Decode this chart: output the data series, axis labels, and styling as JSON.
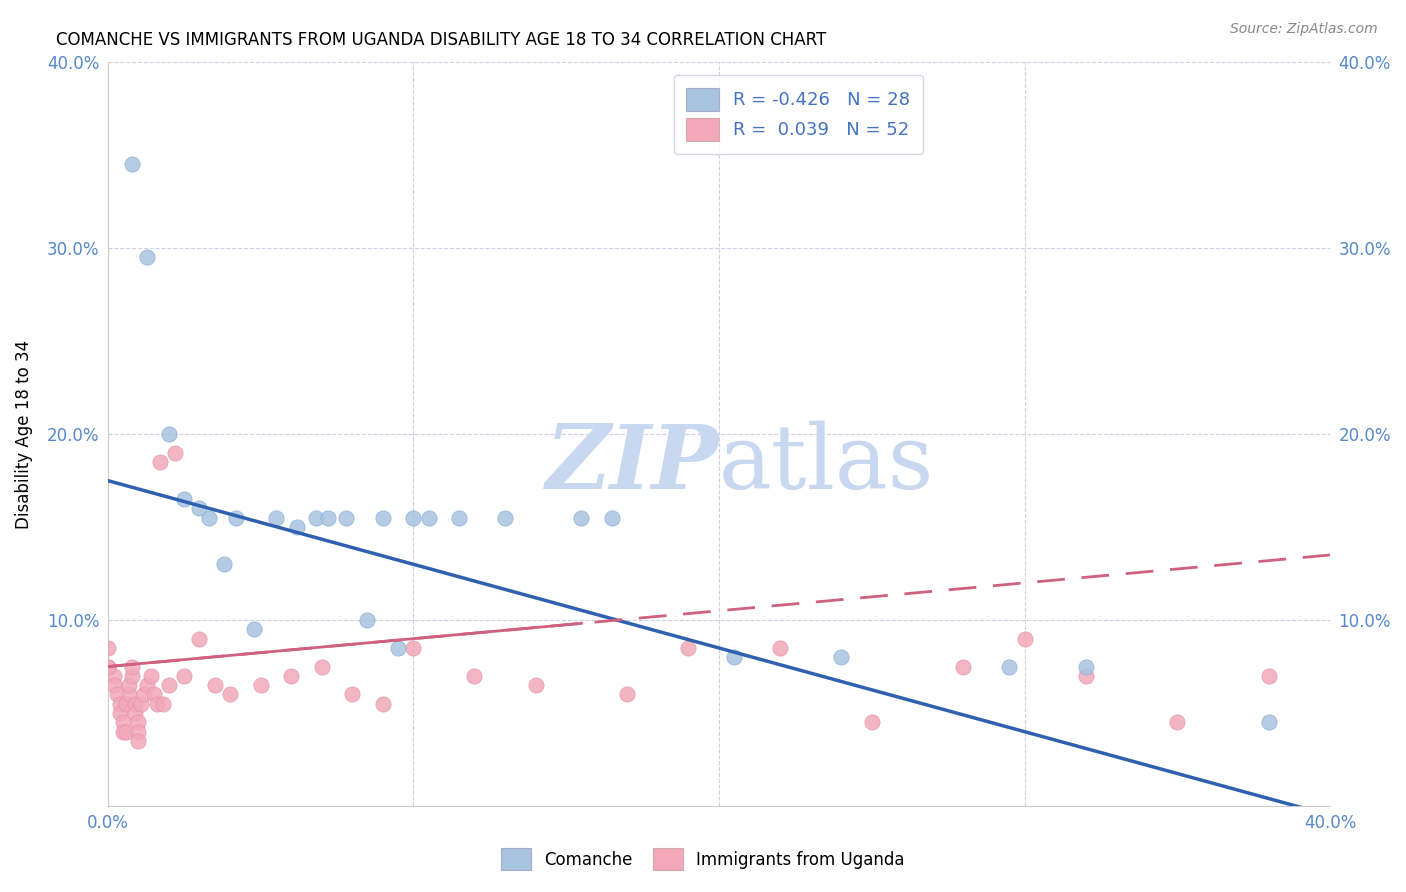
{
  "title": "COMANCHE VS IMMIGRANTS FROM UGANDA DISABILITY AGE 18 TO 34 CORRELATION CHART",
  "source": "Source: ZipAtlas.com",
  "ylabel": "Disability Age 18 to 34",
  "xlim": [
    0.0,
    0.4
  ],
  "ylim": [
    0.0,
    0.4
  ],
  "xtick_vals": [
    0.0,
    0.1,
    0.2,
    0.3,
    0.4
  ],
  "ytick_vals": [
    0.0,
    0.1,
    0.2,
    0.3,
    0.4
  ],
  "legend_label1": "Comanche",
  "legend_label2": "Immigrants from Uganda",
  "comanche_color": "#a8c4e0",
  "uganda_color": "#f2a8b8",
  "comanche_line_color": "#3060b0",
  "uganda_line_color": "#d06080",
  "background_color": "#ffffff",
  "grid_color": "#c8cce0",
  "watermark_color": "#c8d8f0",
  "comanche_x": [
    0.008,
    0.013,
    0.02,
    0.025,
    0.03,
    0.033,
    0.038,
    0.042,
    0.048,
    0.055,
    0.062,
    0.068,
    0.072,
    0.078,
    0.085,
    0.09,
    0.095,
    0.1,
    0.105,
    0.115,
    0.13,
    0.155,
    0.165,
    0.205,
    0.24,
    0.295,
    0.32,
    0.38
  ],
  "comanche_y": [
    0.345,
    0.295,
    0.2,
    0.165,
    0.16,
    0.155,
    0.13,
    0.155,
    0.095,
    0.155,
    0.15,
    0.155,
    0.155,
    0.155,
    0.1,
    0.155,
    0.085,
    0.155,
    0.155,
    0.155,
    0.155,
    0.155,
    0.155,
    0.08,
    0.08,
    0.075,
    0.075,
    0.045
  ],
  "uganda_x": [
    0.0,
    0.0,
    0.002,
    0.002,
    0.003,
    0.004,
    0.004,
    0.005,
    0.005,
    0.006,
    0.006,
    0.007,
    0.007,
    0.008,
    0.008,
    0.009,
    0.009,
    0.01,
    0.01,
    0.01,
    0.011,
    0.012,
    0.013,
    0.014,
    0.015,
    0.016,
    0.017,
    0.018,
    0.02,
    0.022,
    0.025,
    0.03,
    0.035,
    0.04,
    0.05,
    0.06,
    0.07,
    0.08,
    0.09,
    0.1,
    0.12,
    0.14,
    0.17,
    0.19,
    0.22,
    0.25,
    0.28,
    0.3,
    0.32,
    0.35,
    0.38,
    0.0
  ],
  "uganda_y": [
    0.085,
    0.075,
    0.07,
    0.065,
    0.06,
    0.055,
    0.05,
    0.045,
    0.04,
    0.04,
    0.055,
    0.06,
    0.065,
    0.07,
    0.075,
    0.055,
    0.05,
    0.045,
    0.04,
    0.035,
    0.055,
    0.06,
    0.065,
    0.07,
    0.06,
    0.055,
    0.185,
    0.055,
    0.065,
    0.19,
    0.07,
    0.09,
    0.065,
    0.06,
    0.065,
    0.07,
    0.075,
    0.06,
    0.055,
    0.085,
    0.07,
    0.065,
    0.06,
    0.085,
    0.085,
    0.045,
    0.075,
    0.09,
    0.07,
    0.045,
    0.07,
    0.075
  ],
  "comanche_line_x0": 0.0,
  "comanche_line_y0": 0.175,
  "comanche_line_x1": 0.4,
  "comanche_line_y1": -0.005,
  "uganda_line_x0": 0.0,
  "uganda_line_y0": 0.075,
  "uganda_line_x1": 0.4,
  "uganda_line_y1": 0.135
}
